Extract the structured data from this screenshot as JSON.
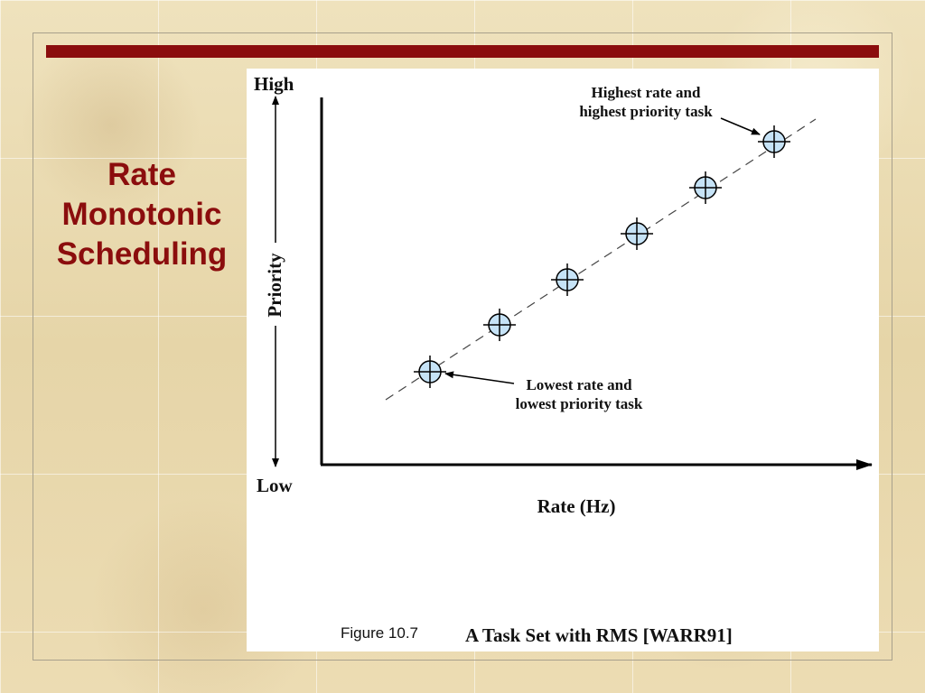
{
  "slide": {
    "title": "Rate Monotonic Scheduling",
    "accent_color": "#8b0d0d"
  },
  "figure": {
    "y_top_label": "High",
    "y_bottom_label": "Low",
    "y_axis_label": "Priority",
    "x_axis_label": "Rate (Hz)",
    "annotation_high_line1": "Highest rate and",
    "annotation_high_line2": "highest priority task",
    "annotation_low_line1": "Lowest rate and",
    "annotation_low_line2": "lowest priority task",
    "caption_prefix": "Figure 10.7",
    "caption_title": "A Task Set with RMS [WARR91]",
    "task_count": 6,
    "marker_fill": "#c6e3f7"
  }
}
